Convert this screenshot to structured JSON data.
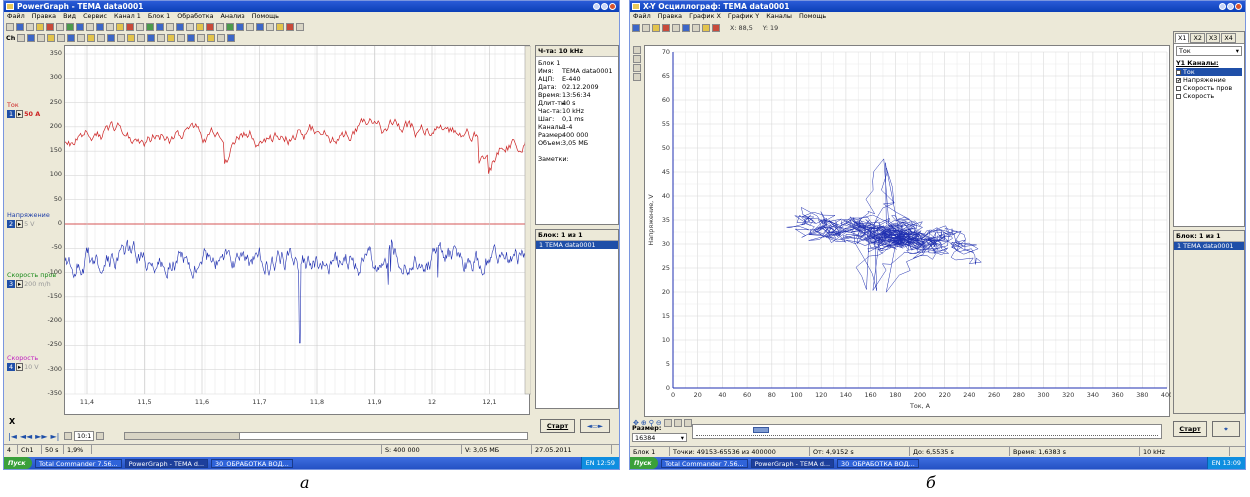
{
  "left": {
    "title": "PowerGraph - TEMA data0001",
    "menu": [
      "Файл",
      "Правка",
      "Вид",
      "Сервис",
      "Канал 1",
      "Блок 1",
      "Обработка",
      "Анализ",
      "Помощь"
    ],
    "toolbar2_label": "Ch",
    "freq_label": "Ч-та: 10 kHz",
    "channels": [
      {
        "name": "Ток",
        "num": "1",
        "range": "50 A",
        "color": "#cc2222"
      },
      {
        "name": "Напряжение",
        "num": "2",
        "range": "5 V",
        "color": "#1f3fa8"
      },
      {
        "name": "Скорость пров",
        "num": "3",
        "range": "200 m/h",
        "color": "#1a8a1a"
      },
      {
        "name": "Скорость",
        "num": "4",
        "range": "10 V",
        "color": "#c020c0"
      }
    ],
    "y_ticks": [
      "350",
      "300",
      "250",
      "200",
      "150",
      "100",
      "50",
      "0",
      "-50",
      "-100",
      "-150",
      "-200",
      "-250",
      "-300",
      "-350"
    ],
    "x_ticks": [
      "11,4",
      "11,5",
      "11,6",
      "11,7",
      "11,8",
      "11,9",
      "12",
      "12,1"
    ],
    "block_info": {
      "header": "Блок 1",
      "rows": [
        {
          "k": "Имя:",
          "v": "TEMA data0001"
        },
        {
          "k": "АЦП:",
          "v": "E-440"
        },
        {
          "k": "Дата:",
          "v": "02.12.2009"
        },
        {
          "k": "Время:",
          "v": "13:56:34"
        },
        {
          "k": "Длит-ть:",
          "v": "40 s"
        },
        {
          "k": "Час-та:",
          "v": "10 kHz"
        },
        {
          "k": "Шаг:",
          "v": "0,1 ms"
        },
        {
          "k": "Каналы:",
          "v": "1-4"
        },
        {
          "k": "Размер:",
          "v": "400 000"
        },
        {
          "k": "Объем:",
          "v": "3,05 МБ"
        }
      ],
      "notes": "Заметки:"
    },
    "block_list_header": "Блок: 1 из 1",
    "block_list_item": "1    TEMA data0001",
    "start_label": "Старт",
    "zoom": "10:1",
    "x_mark": "X",
    "status": [
      "4",
      "Ch1",
      "50 s",
      "1,9%",
      "",
      "S: 400 000",
      "V: 3,05 МБ",
      "27.05.2011"
    ],
    "taskbar": {
      "start": "Пуск",
      "tasks": [
        "Total Commander 7.56...",
        "PowerGraph - TEMA d...",
        "30_ОБРАБОТКА ВОД..."
      ],
      "time": "12:59",
      "lang": "EN"
    }
  },
  "right": {
    "title": "X-Y Осциллограф: TEMA data0001",
    "menu": [
      "Файл",
      "Правка",
      "График X",
      "График Y",
      "Каналы",
      "Помощь"
    ],
    "coords": {
      "x": "X: 88,5",
      "y": "Y: 19"
    },
    "tabs": [
      "X1",
      "X2",
      "X3",
      "X4"
    ],
    "x_channel": "Ток",
    "y_channels_header": "Y1 Каналы:",
    "y_channels": [
      {
        "name": "Ток",
        "checked": false,
        "selected": true
      },
      {
        "name": "Напряжение",
        "checked": true,
        "selected": false
      },
      {
        "name": "Скорость пров",
        "checked": false,
        "selected": false
      },
      {
        "name": "Скорость",
        "checked": false,
        "selected": false
      }
    ],
    "block_list_header": "Блок: 1 из 1",
    "block_list_item": "1    TEMA data0001",
    "x_axis_label": "Ток, A",
    "y_axis_label": "Напряжение, V",
    "x_ticks": [
      "0",
      "20",
      "40",
      "60",
      "80",
      "100",
      "120",
      "140",
      "160",
      "180",
      "200",
      "220",
      "240",
      "260",
      "280",
      "300",
      "320",
      "340",
      "360",
      "380",
      "400"
    ],
    "y_ticks": [
      "70",
      "65",
      "60",
      "55",
      "50",
      "45",
      "40",
      "35",
      "30",
      "25",
      "20",
      "15",
      "10",
      "5",
      "0"
    ],
    "size_label": "Размер:",
    "size_value": "16384",
    "start_label": "Старт",
    "status": [
      "Блок 1",
      "Точки: 49153-65536 из 400000",
      "От: 4,9152 s",
      "До: 6,5535 s",
      "Время: 1,6383 s",
      "10 kHz"
    ],
    "taskbar": {
      "start": "Пуск",
      "tasks": [
        "Total Commander 7.56...",
        "PowerGraph - TEMA d...",
        "30_ОБРАБОТКА ВОД..."
      ],
      "time": "13:09",
      "lang": "EN"
    }
  },
  "captions": [
    "а",
    "б"
  ]
}
